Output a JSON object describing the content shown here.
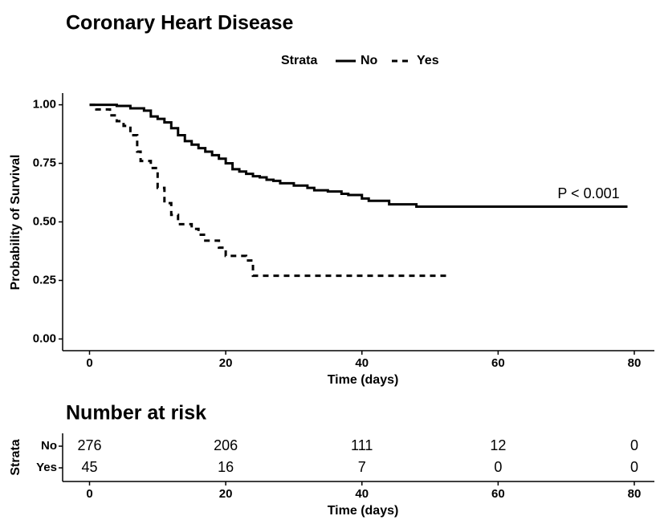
{
  "chart_data": [
    {
      "type": "step",
      "title": "Coronary Heart Disease",
      "legend_title": "Strata",
      "xlabel": "Time (days)",
      "ylabel": "Probability of Survival",
      "annotation": "P < 0.001",
      "xlim": [
        -3.95,
        82.95
      ],
      "xticks": [
        0,
        20,
        40,
        60,
        80
      ],
      "ylim": [
        -0.05,
        1.05
      ],
      "yticks": [
        {
          "value": 0,
          "label": "0.00"
        },
        0.25,
        {
          "value": 0.5,
          "label": "0.50"
        },
        0.75,
        {
          "value": 1,
          "label": "1.00"
        }
      ],
      "legend": "top",
      "grid": false,
      "series": [
        {
          "name": "No",
          "color": "#000000",
          "linestyle": "solid",
          "x": [
            0,
            4,
            6,
            8,
            9,
            10,
            11,
            12,
            13,
            14,
            15,
            16,
            17,
            18,
            19,
            20,
            21,
            22,
            23,
            24,
            25,
            26,
            27,
            28,
            30,
            32,
            33,
            35,
            37,
            38,
            40,
            41,
            44,
            48,
            79
          ],
          "values": [
            1.0,
            0.995,
            0.985,
            0.975,
            0.95,
            0.94,
            0.925,
            0.9,
            0.87,
            0.845,
            0.83,
            0.815,
            0.8,
            0.785,
            0.77,
            0.75,
            0.725,
            0.715,
            0.705,
            0.695,
            0.69,
            0.68,
            0.675,
            0.665,
            0.655,
            0.645,
            0.635,
            0.63,
            0.62,
            0.615,
            0.6,
            0.59,
            0.575,
            0.565,
            0.565
          ]
        },
        {
          "name": "Yes",
          "color": "#000000",
          "linestyle": "dashed",
          "x": [
            0,
            1,
            3,
            4,
            5,
            6,
            7,
            7.5,
            9,
            10,
            11,
            12,
            13,
            15,
            16,
            17,
            19,
            20,
            23,
            24,
            53
          ],
          "values": [
            1.0,
            0.98,
            0.955,
            0.93,
            0.91,
            0.87,
            0.8,
            0.76,
            0.73,
            0.645,
            0.58,
            0.53,
            0.49,
            0.47,
            0.445,
            0.42,
            0.39,
            0.355,
            0.335,
            0.27,
            0.27
          ]
        }
      ]
    },
    {
      "type": "risk_table",
      "title": "Number at risk",
      "ylabel": "Strata",
      "xlabel": "Time (days)",
      "xlim": [
        -3.95,
        82.95
      ],
      "xticks": [
        0,
        20,
        40,
        60,
        80
      ],
      "x": [
        0,
        20,
        40,
        60,
        80
      ],
      "rows": [
        {
          "name": "No",
          "values": [
            276,
            206,
            111,
            12,
            0
          ]
        },
        {
          "name": "Yes",
          "values": [
            45,
            16,
            7,
            0,
            0
          ]
        }
      ]
    }
  ]
}
